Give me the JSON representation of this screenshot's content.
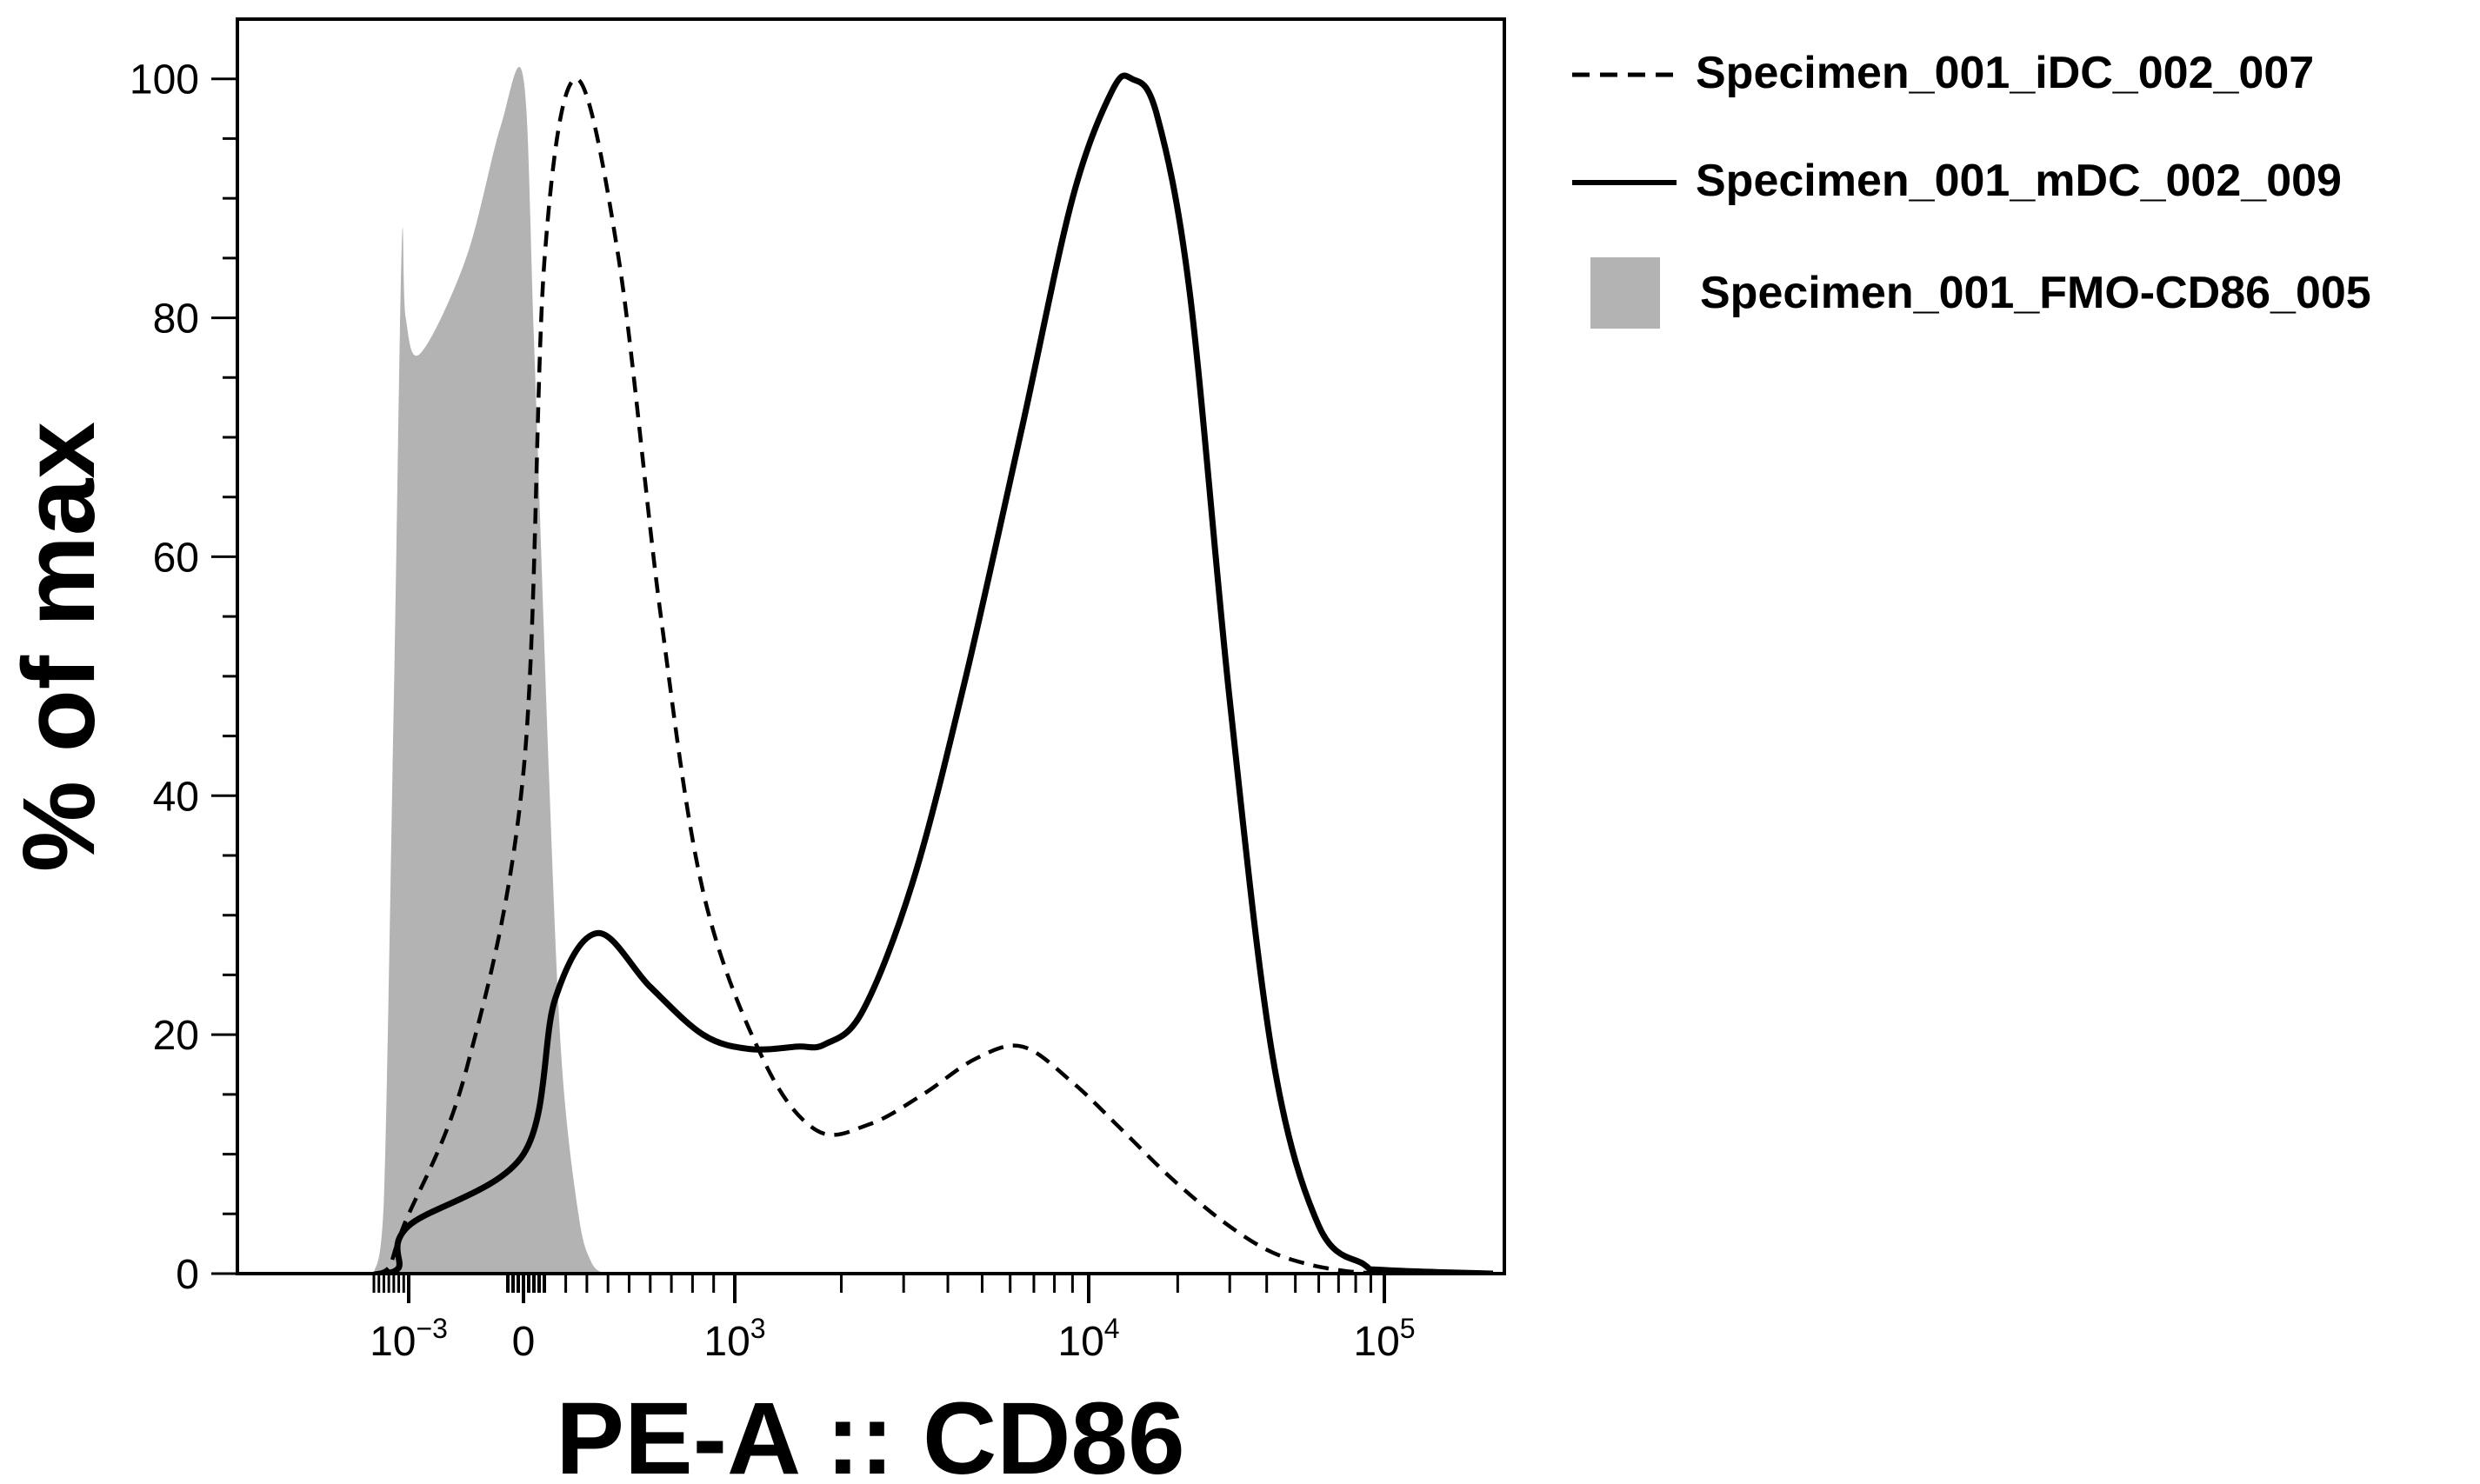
{
  "chart_data": {
    "type": "area",
    "xlabel": "PE-A :: CD86",
    "ylabel": "% of max",
    "x_scale": "biexponential",
    "x_tick_labels": [
      {
        "value": -0.001,
        "base": "10",
        "exp": "−3"
      },
      {
        "value": 0,
        "base": "0",
        "exp": ""
      },
      {
        "value": 1000,
        "base": "10",
        "exp": "3"
      },
      {
        "value": 10000,
        "base": "10",
        "exp": "4"
      },
      {
        "value": 100000,
        "base": "10",
        "exp": "5"
      }
    ],
    "ylim": [
      0,
      105
    ],
    "y_ticks": [
      0,
      20,
      40,
      60,
      80,
      100
    ],
    "y_tick_labels": [
      "0",
      "20",
      "40",
      "60",
      "80",
      "100"
    ],
    "grid": false,
    "legend_position": "right",
    "series": [
      {
        "name": "Specimen_001_iDC_002_007",
        "style": "dashed",
        "color": "#000000",
        "x": [
          -0.0045,
          -0.003,
          -0.0015,
          -0.0005,
          0,
          100,
          250,
          450,
          650,
          850,
          1200,
          1700,
          2400,
          3400,
          4800,
          6500,
          9000,
          13000,
          19000,
          28000,
          40000,
          55000,
          75000,
          100000
        ],
        "values": [
          0,
          0.5,
          4,
          17,
          42,
          85,
          100,
          85,
          55,
          32,
          18,
          12,
          12.5,
          15,
          18,
          19,
          16,
          12,
          8,
          4.5,
          2,
          0.8,
          0.2,
          0
        ]
      },
      {
        "name": "Specimen_001_mDC_002_009",
        "style": "solid",
        "color": "#000000",
        "x": [
          -0.0035,
          -0.002,
          -0.001,
          0,
          150,
          350,
          600,
          850,
          1100,
          1500,
          1800,
          2300,
          3200,
          4500,
          6500,
          9000,
          12000,
          14000,
          17000,
          22000,
          30000,
          42000,
          60000,
          85000,
          100000,
          200000
        ],
        "values": [
          0,
          0.5,
          4,
          10,
          23,
          28.5,
          24,
          20,
          18.8,
          19,
          19.2,
          22,
          33,
          50,
          71,
          90,
          99,
          100,
          97,
          82,
          48,
          18,
          4,
          0.8,
          0.3,
          0
        ]
      },
      {
        "name": "Specimen_001_FMO-CD86_005",
        "style": "filled",
        "color": "#b3b3b3",
        "x": [
          -0.0045,
          -0.0035,
          -0.0025,
          -0.0017,
          -0.0013,
          -0.0009,
          -0.0005,
          -0.0002,
          0,
          50,
          120,
          180,
          260,
          320,
          380
        ],
        "values": [
          0,
          6,
          48,
          86,
          80,
          77,
          85,
          96,
          100,
          78,
          42,
          18,
          5,
          1,
          0
        ]
      }
    ]
  }
}
